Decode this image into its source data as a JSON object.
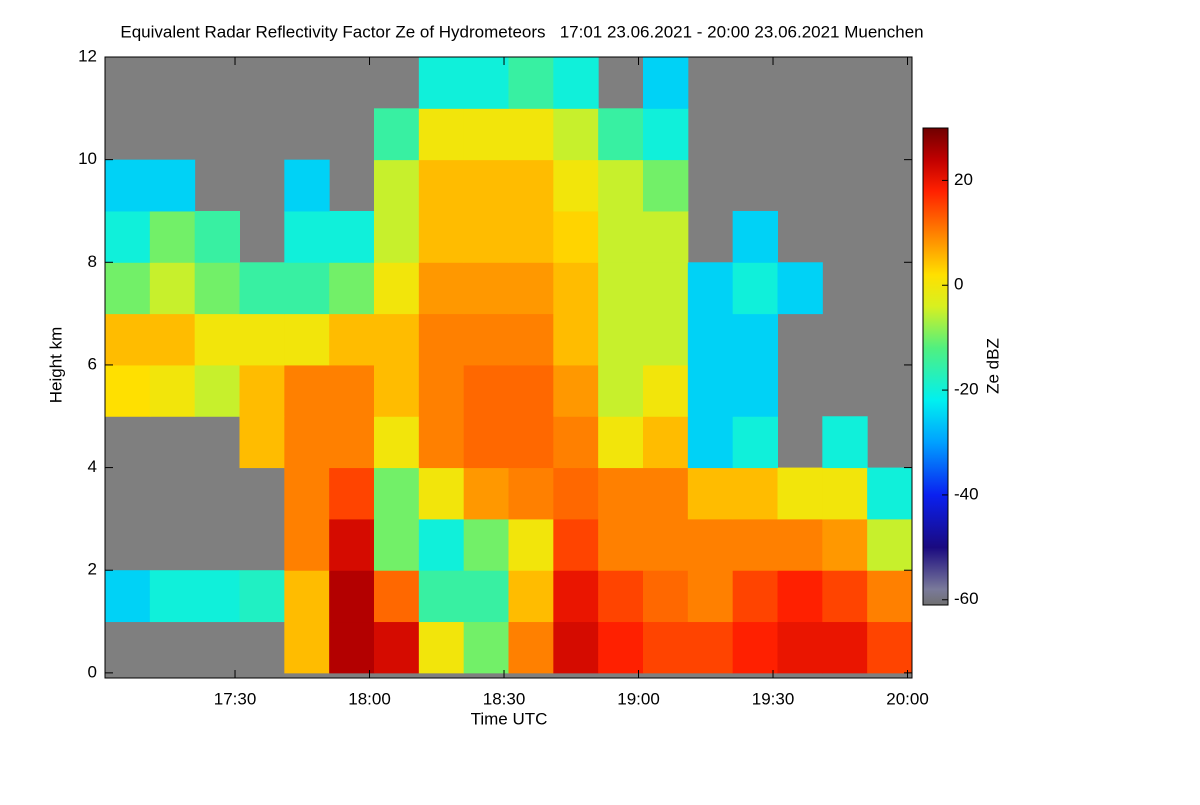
{
  "chart_data": {
    "type": "heatmap",
    "title": "Equivalent Radar Reflectivity Factor Ze of Hydrometeors   17:01 23.06.2021 - 20:00 23.06.2021 Muenchen",
    "x_label": "Time UTC",
    "y_label": "Height km",
    "colorbar_label": "Ze dBZ",
    "xlim": [
      "17:01",
      "20:01"
    ],
    "xticks": [
      "17:30",
      "18:00",
      "18:30",
      "19:00",
      "19:30",
      "20:00"
    ],
    "ylim": [
      -0.1,
      12
    ],
    "yticks": [
      0,
      2,
      4,
      6,
      8,
      10,
      12
    ],
    "zlim": [
      -61,
      30
    ],
    "zticks": [
      -60,
      -40,
      -20,
      0,
      20
    ],
    "background": "#7f7f7f",
    "colorscale": [
      [
        -61,
        "#707070"
      ],
      [
        -58,
        "#7a7a9a"
      ],
      [
        -50,
        "#1a0a80"
      ],
      [
        -40,
        "#0a20f0"
      ],
      [
        -30,
        "#00a0ff"
      ],
      [
        -22,
        "#00f0f0"
      ],
      [
        -12,
        "#50f080"
      ],
      [
        -4,
        "#d8f020"
      ],
      [
        2,
        "#ffe000"
      ],
      [
        10,
        "#ff8000"
      ],
      [
        18,
        "#ff2000"
      ],
      [
        24,
        "#c00000"
      ],
      [
        30,
        "#700000"
      ]
    ],
    "x_edges": [
      "17:01",
      "17:11",
      "17:21",
      "17:31",
      "17:41",
      "17:51",
      "18:01",
      "18:11",
      "18:21",
      "18:31",
      "18:41",
      "18:51",
      "19:01",
      "19:11",
      "19:21",
      "19:31",
      "19:41",
      "19:51",
      "20:01"
    ],
    "y_edges": [
      0,
      1,
      2,
      3,
      4,
      5,
      6,
      7,
      8,
      9,
      10,
      11,
      12
    ],
    "z": [
      [
        null,
        null,
        null,
        null,
        5,
        25,
        22,
        0,
        -10,
        10,
        22,
        18,
        15,
        15,
        18,
        20,
        20,
        15
      ],
      [
        -25,
        -20,
        -20,
        -18,
        5,
        25,
        12,
        -15,
        -15,
        5,
        20,
        15,
        12,
        10,
        15,
        18,
        15,
        10
      ],
      [
        null,
        null,
        null,
        null,
        10,
        22,
        -10,
        -20,
        -10,
        0,
        15,
        10,
        10,
        10,
        10,
        10,
        8,
        -5
      ],
      [
        null,
        null,
        null,
        null,
        10,
        15,
        -10,
        0,
        8,
        10,
        12,
        10,
        10,
        5,
        5,
        0,
        0,
        -20
      ],
      [
        null,
        null,
        null,
        5,
        10,
        10,
        0,
        10,
        12,
        12,
        10,
        0,
        5,
        -25,
        -20,
        null,
        -20,
        null
      ],
      [
        2,
        0,
        -5,
        5,
        10,
        10,
        5,
        10,
        12,
        12,
        8,
        -5,
        0,
        -25,
        -25,
        null,
        null,
        null
      ],
      [
        5,
        5,
        0,
        0,
        0,
        5,
        5,
        10,
        10,
        10,
        5,
        -5,
        -5,
        -25,
        -25,
        null,
        null,
        null
      ],
      [
        -10,
        -5,
        -10,
        -15,
        -15,
        -10,
        0,
        8,
        8,
        8,
        5,
        -5,
        -5,
        -25,
        -20,
        -25,
        null,
        null
      ],
      [
        -20,
        -10,
        -15,
        null,
        -20,
        -20,
        -5,
        5,
        5,
        5,
        3,
        -5,
        -5,
        null,
        -25,
        null,
        null,
        null
      ],
      [
        -25,
        -25,
        null,
        null,
        -25,
        null,
        -5,
        5,
        5,
        5,
        0,
        -5,
        -10,
        null,
        null,
        null,
        null,
        null
      ],
      [
        null,
        null,
        null,
        null,
        null,
        null,
        -15,
        0,
        0,
        0,
        -5,
        -15,
        -20,
        null,
        null,
        null,
        null,
        null
      ],
      [
        null,
        null,
        null,
        null,
        null,
        null,
        null,
        -20,
        -20,
        -15,
        -20,
        null,
        -25,
        null,
        null,
        null,
        null,
        null
      ]
    ]
  }
}
